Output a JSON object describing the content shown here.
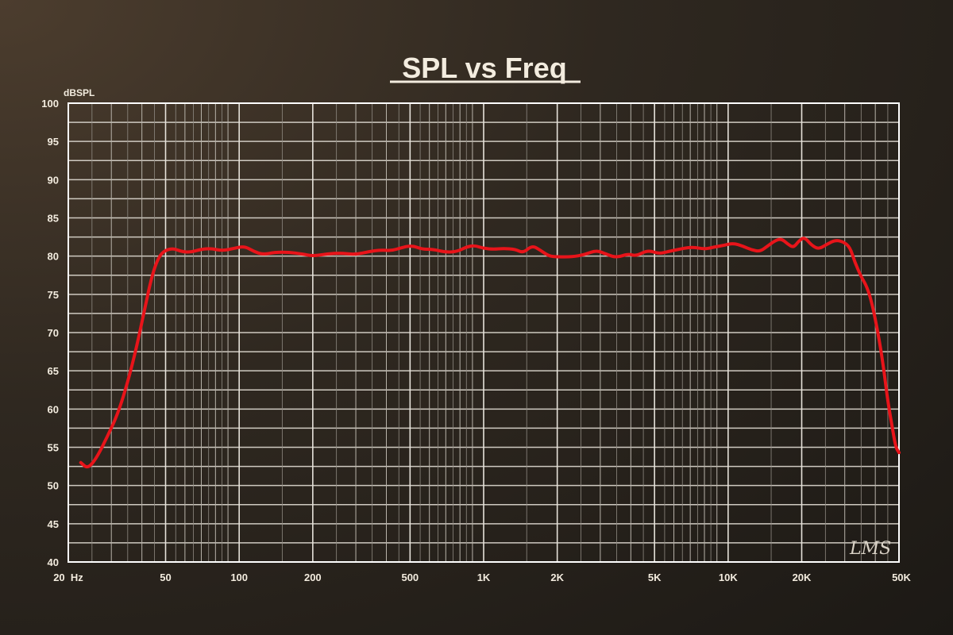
{
  "chart_data": {
    "type": "line",
    "title": "SPL vs Freq",
    "ylabel": "dBSPL",
    "xlabel": "",
    "x_scale": "log",
    "xlim": [
      20,
      50000
    ],
    "ylim": [
      40,
      100
    ],
    "grid": true,
    "y_ticks": [
      "100",
      "95",
      "90",
      "85",
      "80",
      "75",
      "70",
      "65",
      "60",
      "55",
      "50",
      "45",
      "40"
    ],
    "x_ticks": [
      {
        "value": 20,
        "label": "20  Hz"
      },
      {
        "value": 50,
        "label": "50"
      },
      {
        "value": 100,
        "label": "100"
      },
      {
        "value": 200,
        "label": "200"
      },
      {
        "value": 500,
        "label": "500"
      },
      {
        "value": 1000,
        "label": "1K"
      },
      {
        "value": 2000,
        "label": "2K"
      },
      {
        "value": 5000,
        "label": "5K"
      },
      {
        "value": 10000,
        "label": "10K"
      },
      {
        "value": 20000,
        "label": "20K"
      },
      {
        "value": 50000,
        "label": "50K"
      }
    ],
    "series": [
      {
        "color": "#e8141a",
        "points": [
          [
            22.5,
            53.0
          ],
          [
            24,
            52.2
          ],
          [
            26,
            53.5
          ],
          [
            29,
            56.5
          ],
          [
            32,
            59.5
          ],
          [
            35,
            63.5
          ],
          [
            38,
            68.0
          ],
          [
            41,
            73.0
          ],
          [
            44,
            77.5
          ],
          [
            47,
            80.0
          ],
          [
            50,
            80.8
          ],
          [
            54,
            81.0
          ],
          [
            58,
            80.6
          ],
          [
            63,
            80.5
          ],
          [
            70,
            80.9
          ],
          [
            77,
            81.0
          ],
          [
            85,
            80.7
          ],
          [
            95,
            81.0
          ],
          [
            105,
            81.3
          ],
          [
            115,
            80.6
          ],
          [
            125,
            80.2
          ],
          [
            140,
            80.5
          ],
          [
            160,
            80.5
          ],
          [
            180,
            80.3
          ],
          [
            200,
            80.0
          ],
          [
            230,
            80.3
          ],
          [
            260,
            80.4
          ],
          [
            300,
            80.2
          ],
          [
            340,
            80.6
          ],
          [
            380,
            80.8
          ],
          [
            420,
            80.7
          ],
          [
            460,
            81.1
          ],
          [
            510,
            81.4
          ],
          [
            560,
            80.9
          ],
          [
            620,
            80.9
          ],
          [
            700,
            80.5
          ],
          [
            780,
            80.6
          ],
          [
            850,
            81.2
          ],
          [
            920,
            81.4
          ],
          [
            1000,
            81.0
          ],
          [
            1100,
            80.9
          ],
          [
            1200,
            81.0
          ],
          [
            1350,
            80.9
          ],
          [
            1450,
            80.4
          ],
          [
            1580,
            81.4
          ],
          [
            1700,
            80.8
          ],
          [
            1850,
            80.0
          ],
          [
            2000,
            79.9
          ],
          [
            2300,
            79.9
          ],
          [
            2600,
            80.2
          ],
          [
            2900,
            80.8
          ],
          [
            3200,
            80.2
          ],
          [
            3500,
            79.8
          ],
          [
            3900,
            80.3
          ],
          [
            4200,
            80.0
          ],
          [
            4700,
            80.8
          ],
          [
            5200,
            80.3
          ],
          [
            5700,
            80.6
          ],
          [
            6500,
            81.0
          ],
          [
            7200,
            81.2
          ],
          [
            8000,
            80.9
          ],
          [
            8800,
            81.2
          ],
          [
            9600,
            81.4
          ],
          [
            10500,
            81.7
          ],
          [
            11500,
            81.3
          ],
          [
            12500,
            80.8
          ],
          [
            13500,
            80.6
          ],
          [
            14500,
            81.3
          ],
          [
            15500,
            82.0
          ],
          [
            16500,
            82.3
          ],
          [
            17500,
            81.6
          ],
          [
            18500,
            81.1
          ],
          [
            19500,
            82.0
          ],
          [
            20500,
            82.5
          ],
          [
            22000,
            81.4
          ],
          [
            23500,
            80.9
          ],
          [
            25500,
            81.6
          ],
          [
            27500,
            82.1
          ],
          [
            29500,
            81.9
          ],
          [
            31500,
            81.2
          ],
          [
            33000,
            79.2
          ],
          [
            35000,
            77.3
          ],
          [
            37000,
            76.0
          ],
          [
            39000,
            73.5
          ],
          [
            41000,
            70.0
          ],
          [
            43000,
            66.0
          ],
          [
            45000,
            61.0
          ],
          [
            47000,
            57.5
          ],
          [
            48500,
            55.0
          ],
          [
            50000,
            54.3
          ]
        ]
      }
    ]
  },
  "watermark": "LMS"
}
